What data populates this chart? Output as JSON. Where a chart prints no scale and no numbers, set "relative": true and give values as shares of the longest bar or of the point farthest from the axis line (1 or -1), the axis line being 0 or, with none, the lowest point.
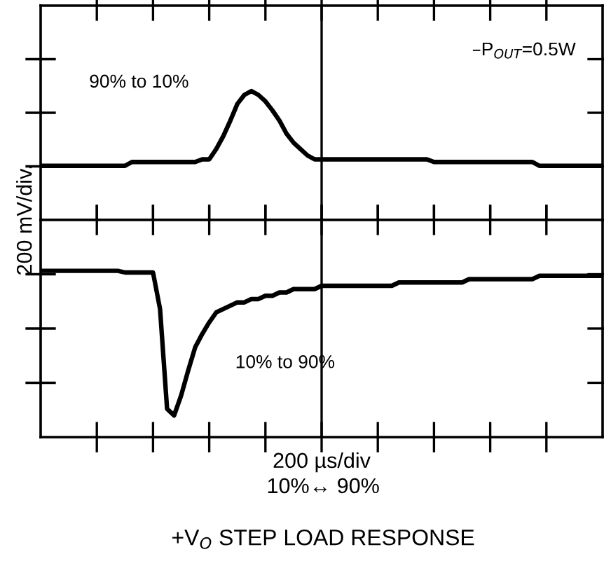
{
  "chart_data": [
    {
      "type": "line",
      "relative": true,
      "grid": "x",
      "marker": "none",
      "line_style": "solid",
      "tick_labels": false,
      "annotations": [
        "90% to 10%",
        "–P$_{OUT}$=0.5W"
      ],
      "categories": [
        null,
        null,
        null,
        null,
        null,
        null,
        null,
        null,
        null,
        null,
        null,
        null,
        null,
        null,
        null,
        null,
        null,
        null,
        null,
        null,
        null,
        null,
        null,
        null,
        null,
        null,
        null,
        null,
        null,
        null,
        null,
        null,
        null,
        null,
        null,
        null,
        null,
        null,
        null,
        null,
        null,
        null,
        null,
        null,
        null,
        null,
        null,
        null,
        null,
        null,
        null,
        null,
        null,
        null,
        null,
        null,
        null,
        null,
        null,
        null,
        null,
        null,
        null,
        null,
        null,
        null,
        null,
        null,
        null,
        null,
        null,
        null,
        null,
        null,
        null,
        null,
        null,
        null,
        null,
        null,
        null
      ],
      "series": [
        {
          "color": "#000000",
          "values": [
            0.42,
            0.42,
            0.42,
            0.42,
            0.42,
            0.42,
            0.42,
            0.42,
            0.42,
            0.42,
            0.42,
            0.42,
            0.42,
            0.45,
            0.45,
            0.45,
            0.45,
            0.45,
            0.45,
            0.45,
            0.45,
            0.45,
            0.45,
            0.47,
            0.47,
            0.55,
            0.65,
            0.77,
            0.9,
            0.97,
            1,
            0.97,
            0.92,
            0.85,
            0.77,
            0.67,
            0.6,
            0.55,
            0.5,
            0.47,
            0.47,
            0.47,
            0.47,
            0.47,
            0.47,
            0.47,
            0.47,
            0.47,
            0.47,
            0.47,
            0.47,
            0.47,
            0.47,
            0.47,
            0.47,
            0.47,
            0.45,
            0.45,
            0.45,
            0.45,
            0.45,
            0.45,
            0.45,
            0.45,
            0.45,
            0.45,
            0.45,
            0.45,
            0.45,
            0.45,
            0.45,
            0.42,
            0.42,
            0.42,
            0.42,
            0.42,
            0.42,
            0.42,
            0.42,
            0.42,
            0.42
          ]
        }
      ]
    },
    {
      "type": "line",
      "relative": true,
      "grid": "x",
      "marker": "none",
      "line_style": "solid",
      "tick_labels": false,
      "title": "+V$_{O}$ STEP LOAD RESPONSE",
      "xlabel": "200 µs/div",
      "ylabel": "200 mV/div.",
      "annotations": [
        "10% to 90%",
        "10%↔ 90%"
      ],
      "categories": [
        null,
        null,
        null,
        null,
        null,
        null,
        null,
        null,
        null,
        null,
        null,
        null,
        null,
        null,
        null,
        null,
        null,
        null,
        null,
        null,
        null,
        null,
        null,
        null,
        null,
        null,
        null,
        null,
        null,
        null,
        null,
        null,
        null,
        null,
        null,
        null,
        null,
        null,
        null,
        null,
        null,
        null,
        null,
        null,
        null,
        null,
        null,
        null,
        null,
        null,
        null,
        null,
        null,
        null,
        null,
        null,
        null,
        null,
        null,
        null,
        null,
        null,
        null,
        null,
        null,
        null,
        null,
        null,
        null,
        null,
        null,
        null,
        null,
        null,
        null,
        null,
        null,
        null,
        null,
        null,
        null
      ],
      "series": [
        {
          "color": "#000000",
          "values": [
            1,
            1,
            1,
            1,
            1,
            1,
            1,
            1,
            1,
            1,
            1,
            1,
            0.99,
            0.99,
            0.99,
            0.99,
            0.99,
            0.77,
            0.17,
            0.13,
            0.25,
            0.4,
            0.54,
            0.62,
            0.69,
            0.75,
            0.77,
            0.79,
            0.81,
            0.81,
            0.83,
            0.83,
            0.85,
            0.85,
            0.87,
            0.87,
            0.89,
            0.89,
            0.89,
            0.89,
            0.91,
            0.91,
            0.91,
            0.91,
            0.91,
            0.91,
            0.91,
            0.91,
            0.91,
            0.91,
            0.91,
            0.93,
            0.93,
            0.93,
            0.93,
            0.93,
            0.93,
            0.93,
            0.93,
            0.93,
            0.93,
            0.95,
            0.95,
            0.95,
            0.95,
            0.95,
            0.95,
            0.95,
            0.95,
            0.95,
            0.95,
            0.97,
            0.97,
            0.97,
            0.97,
            0.97,
            0.97,
            0.97,
            0.97,
            0.97,
            0.97
          ]
        }
      ]
    }
  ]
}
